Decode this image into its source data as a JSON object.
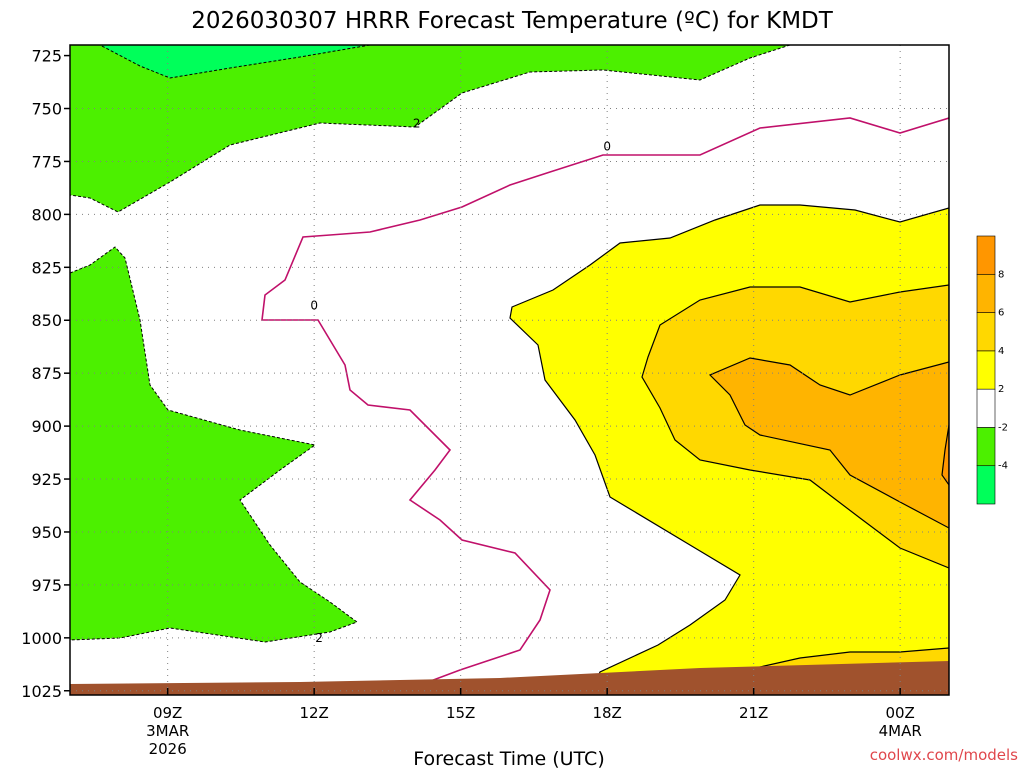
{
  "chart_data": {
    "type": "contour",
    "title": "2026030307 HRRR Forecast Temperature (ºC) for KMDT",
    "xlabel": "Forecast Time (UTC)",
    "credit": "coolwx.com/models",
    "x_range_hours": [
      0,
      18
    ],
    "x_ticks": [
      {
        "hour": 2,
        "label": "09Z",
        "sub": [
          "3MAR",
          "2026"
        ]
      },
      {
        "hour": 5,
        "label": "12Z",
        "sub": []
      },
      {
        "hour": 8,
        "label": "15Z",
        "sub": []
      },
      {
        "hour": 11,
        "label": "18Z",
        "sub": []
      },
      {
        "hour": 14,
        "label": "21Z",
        "sub": []
      },
      {
        "hour": 17,
        "label": "00Z",
        "sub": [
          "4MAR"
        ]
      }
    ],
    "y_range_hpa": [
      720,
      1027
    ],
    "y_ticks": [
      725,
      750,
      775,
      800,
      825,
      850,
      875,
      900,
      925,
      950,
      975,
      1000,
      1025
    ],
    "colorbar": {
      "levels": [
        -6,
        -4,
        -2,
        2,
        4,
        6,
        8,
        10
      ],
      "tick_labels": [
        "-4",
        "-2",
        "2",
        "4",
        "6",
        "8"
      ],
      "colors": [
        "#00ff5a",
        "#4cf000",
        "#ffffff",
        "#ffff00",
        "#ffd800",
        "#ffb400",
        "#ff9600"
      ]
    },
    "contour_labels": [
      {
        "text": "2",
        "hour": 5.1,
        "hpa": 1000
      },
      {
        "text": "2",
        "hour": 7.1,
        "hpa": 757
      },
      {
        "text": "0",
        "hour": 5.0,
        "hpa": 843
      },
      {
        "text": "0",
        "hour": 11.0,
        "hpa": 768
      }
    ]
  }
}
